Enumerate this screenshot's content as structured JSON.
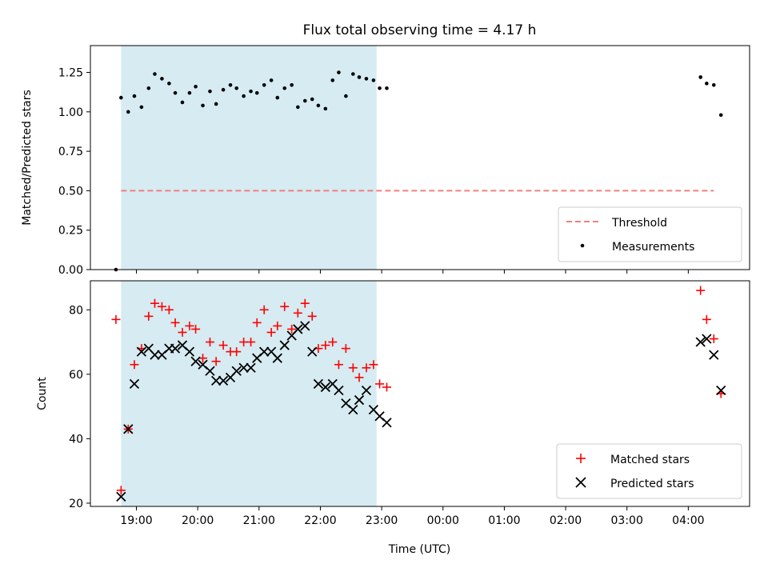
{
  "chart_data": [
    {
      "type": "scatter",
      "title": "Flux total observing time = 4.17 h",
      "ylabel": "Matched/Predicted stars",
      "xlabel": "",
      "ylim": [
        0,
        1.42
      ],
      "yticks": [
        0.0,
        0.25,
        0.5,
        0.75,
        1.0,
        1.25
      ],
      "yticklabels": [
        "0.00",
        "0.25",
        "0.50",
        "0.75",
        "1.00",
        "1.25"
      ],
      "shaded_region": {
        "start": "18:45",
        "end": "22:55",
        "color": "#add8e6"
      },
      "threshold": {
        "name": "Threshold",
        "value": 0.5,
        "x_start": "18:45",
        "x_end": "04:25",
        "color": "#f08080",
        "style": "dashed"
      },
      "series": [
        {
          "name": "Measurements",
          "marker": "dot",
          "color": "#000000",
          "x": [
            "18:40",
            "18:45",
            "18:52",
            "18:58",
            "19:05",
            "19:12",
            "19:18",
            "19:25",
            "19:32",
            "19:38",
            "19:45",
            "19:52",
            "19:58",
            "20:05",
            "20:12",
            "20:18",
            "20:25",
            "20:32",
            "20:38",
            "20:45",
            "20:52",
            "20:58",
            "21:05",
            "21:12",
            "21:18",
            "21:25",
            "21:32",
            "21:38",
            "21:45",
            "21:52",
            "21:58",
            "22:05",
            "22:12",
            "22:18",
            "22:25",
            "22:32",
            "22:38",
            "22:45",
            "22:52",
            "22:58",
            "23:05",
            "04:12",
            "04:18",
            "04:25",
            "04:32"
          ],
          "y": [
            0.0,
            1.09,
            1.0,
            1.1,
            1.03,
            1.15,
            1.24,
            1.21,
            1.18,
            1.12,
            1.06,
            1.12,
            1.16,
            1.04,
            1.13,
            1.05,
            1.14,
            1.17,
            1.15,
            1.1,
            1.13,
            1.12,
            1.17,
            1.2,
            1.09,
            1.15,
            1.17,
            1.03,
            1.07,
            1.08,
            1.04,
            1.02,
            1.2,
            1.25,
            1.1,
            1.24,
            1.22,
            1.21,
            1.2,
            1.15,
            1.15,
            1.22,
            1.18,
            1.17,
            0.98
          ]
        }
      ],
      "legend": {
        "position": "bottom-right",
        "entries": [
          "Threshold",
          "Measurements"
        ]
      }
    },
    {
      "type": "scatter",
      "title": "",
      "xlabel": "Time (UTC)",
      "ylabel": "Count",
      "ylim": [
        19,
        89
      ],
      "yticks": [
        20,
        40,
        60,
        80
      ],
      "yticklabels": [
        "20",
        "40",
        "60",
        "80"
      ],
      "xticklabels": [
        "19:00",
        "20:00",
        "21:00",
        "22:00",
        "23:00",
        "00:00",
        "01:00",
        "02:00",
        "03:00",
        "04:00"
      ],
      "shaded_region": {
        "start": "18:45",
        "end": "22:55",
        "color": "#add8e6"
      },
      "series": [
        {
          "name": "Matched stars",
          "marker": "plus",
          "color": "#ff0000",
          "x": [
            "18:40",
            "18:45",
            "18:52",
            "18:58",
            "19:05",
            "19:12",
            "19:18",
            "19:25",
            "19:32",
            "19:38",
            "19:45",
            "19:52",
            "19:58",
            "20:05",
            "20:12",
            "20:18",
            "20:25",
            "20:32",
            "20:38",
            "20:45",
            "20:52",
            "20:58",
            "21:05",
            "21:12",
            "21:18",
            "21:25",
            "21:32",
            "21:38",
            "21:45",
            "21:52",
            "21:58",
            "22:05",
            "22:12",
            "22:18",
            "22:25",
            "22:32",
            "22:38",
            "22:45",
            "22:52",
            "22:58",
            "23:05",
            "04:12",
            "04:18",
            "04:25",
            "04:32"
          ],
          "y": [
            77,
            24,
            43,
            63,
            68,
            78,
            82,
            81,
            80,
            76,
            73,
            75,
            74,
            65,
            70,
            64,
            69,
            67,
            67,
            70,
            70,
            76,
            80,
            73,
            75,
            81,
            74,
            79,
            82,
            78,
            68,
            69,
            70,
            63,
            68,
            62,
            59,
            62,
            63,
            57,
            56,
            86,
            77,
            71,
            54
          ]
        },
        {
          "name": "Predicted stars",
          "marker": "x",
          "color": "#000000",
          "x": [
            "18:45",
            "18:52",
            "18:58",
            "19:05",
            "19:12",
            "19:18",
            "19:25",
            "19:32",
            "19:38",
            "19:45",
            "19:52",
            "19:58",
            "20:05",
            "20:12",
            "20:18",
            "20:25",
            "20:32",
            "20:38",
            "20:45",
            "20:52",
            "20:58",
            "21:05",
            "21:12",
            "21:18",
            "21:25",
            "21:32",
            "21:38",
            "21:45",
            "21:52",
            "21:58",
            "22:05",
            "22:12",
            "22:18",
            "22:25",
            "22:32",
            "22:38",
            "22:45",
            "22:52",
            "22:58",
            "23:05",
            "04:12",
            "04:18",
            "04:25",
            "04:32"
          ],
          "y": [
            22,
            43,
            57,
            67,
            68,
            66,
            66,
            68,
            68,
            69,
            67,
            64,
            63,
            61,
            58,
            58,
            59,
            61,
            62,
            62,
            65,
            67,
            67,
            65,
            69,
            72,
            74,
            75,
            67,
            57,
            56,
            57,
            55,
            51,
            49,
            52,
            55,
            49,
            47,
            45,
            70,
            71,
            66,
            55
          ]
        }
      ],
      "legend": {
        "position": "bottom-right",
        "entries": [
          "Matched stars",
          "Predicted stars"
        ]
      }
    }
  ]
}
